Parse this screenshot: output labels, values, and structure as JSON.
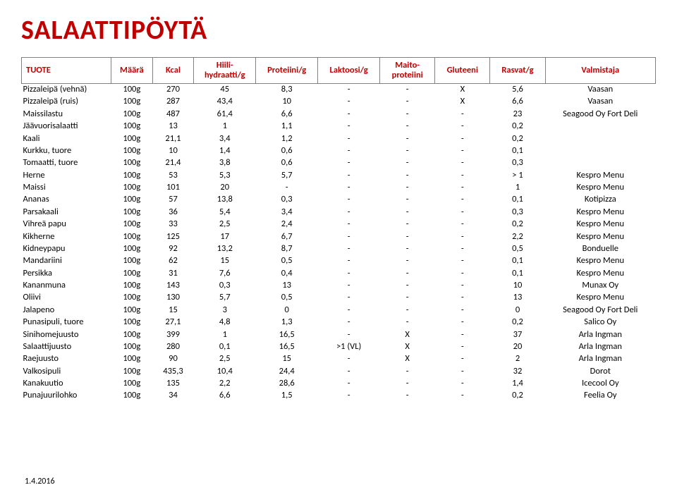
{
  "title": "SALAATTIPÖYTÄ",
  "footer_date": "1.4.2016",
  "table": {
    "headers": [
      "TUOTE",
      "Määrä",
      "Kcal",
      "Hiili-\nhydraatti/g",
      "Proteiini/g",
      "Laktoosi/g",
      "Maito-\nproteiini",
      "Gluteeni",
      "Rasvat/g",
      "Valmistaja"
    ],
    "rows": [
      [
        "Pizzaleipä (vehnä)",
        "100g",
        "270",
        "45",
        "8,3",
        "-",
        "-",
        "X",
        "5,6",
        "Vaasan"
      ],
      [
        "Pizzaleipä (ruis)",
        "100g",
        "287",
        "43,4",
        "10",
        "-",
        "-",
        "X",
        "6,6",
        "Vaasan"
      ],
      [
        "Maissilastu",
        "100g",
        "487",
        "61,4",
        "6,6",
        "-",
        "-",
        "-",
        "23",
        "Seagood Oy Fort Deli"
      ],
      [
        "Jäävuorisalaatti",
        "100g",
        "13",
        "1",
        "1,1",
        "-",
        "-",
        "-",
        "0,2",
        ""
      ],
      [
        "Kaali",
        "100g",
        "21,1",
        "3,4",
        "1,2",
        "-",
        "-",
        "-",
        "0,2",
        ""
      ],
      [
        "Kurkku, tuore",
        "100g",
        "10",
        "1,4",
        "0,6",
        "-",
        "-",
        "-",
        "0,1",
        ""
      ],
      [
        "Tomaatti, tuore",
        "100g",
        "21,4",
        "3,8",
        "0,6",
        "-",
        "-",
        "-",
        "0,3",
        ""
      ],
      [
        "Herne",
        "100g",
        "53",
        "5,3",
        "5,7",
        "-",
        "-",
        "-",
        "> 1",
        "Kespro Menu"
      ],
      [
        "Maissi",
        "100g",
        "101",
        "20",
        "-",
        "-",
        "-",
        "-",
        "1",
        "Kespro Menu"
      ],
      [
        "Ananas",
        "100g",
        "57",
        "13,8",
        "0,3",
        "-",
        "-",
        "-",
        "0,1",
        "Kotipizza"
      ],
      [
        "Parsakaali",
        "100g",
        "36",
        "5,4",
        "3,4",
        "-",
        "-",
        "-",
        "0,3",
        "Kespro Menu"
      ],
      [
        "Vihreä papu",
        "100g",
        "33",
        "2,5",
        "2,4",
        "-",
        "-",
        "-",
        "0,2",
        "Kespro Menu"
      ],
      [
        "Kikherne",
        "100g",
        "125",
        "17",
        "6,7",
        "-",
        "-",
        "-",
        "2,2",
        "Kespro Menu"
      ],
      [
        "Kidneypapu",
        "100g",
        "92",
        "13,2",
        "8,7",
        "-",
        "-",
        "-",
        "0,5",
        "Bonduelle"
      ],
      [
        "Mandariini",
        "100g",
        "62",
        "15",
        "0,5",
        "-",
        "-",
        "-",
        "0,1",
        "Kespro Menu"
      ],
      [
        "Persikka",
        "100g",
        "31",
        "7,6",
        "0,4",
        "-",
        "-",
        "-",
        "0,1",
        "Kespro Menu"
      ],
      [
        "Kananmuna",
        "100g",
        "143",
        "0,3",
        "13",
        "-",
        "-",
        "-",
        "10",
        "Munax Oy"
      ],
      [
        "Oliivi",
        "100g",
        "130",
        "5,7",
        "0,5",
        "-",
        "-",
        "-",
        "13",
        "Kespro Menu"
      ],
      [
        "Jalapeno",
        "100g",
        "15",
        "3",
        "0",
        "-",
        "-",
        "-",
        "0",
        "Seagood Oy Fort Deli"
      ],
      [
        "Punasipuli, tuore",
        "100g",
        "27,1",
        "4,8",
        "1,3",
        "-",
        "-",
        "-",
        "0,2",
        "Salico Oy"
      ],
      [
        "Sinihomejuusto",
        "100g",
        "399",
        "1",
        "16,5",
        "-",
        "X",
        "-",
        "37",
        "Arla Ingman"
      ],
      [
        "Salaattijuusto",
        "100g",
        "280",
        "0,1",
        "16,5",
        ">1 (VL)",
        "X",
        "-",
        "20",
        "Arla Ingman"
      ],
      [
        "Raejuusto",
        "100g",
        "90",
        "2,5",
        "15",
        "-",
        "X",
        "-",
        "2",
        "Arla Ingman"
      ],
      [
        "Valkosipuli",
        "100g",
        "435,3",
        "10,4",
        "24,4",
        "-",
        "-",
        "-",
        "32",
        "Dorot"
      ],
      [
        "Kanakuutio",
        "100g",
        "135",
        "2,2",
        "28,6",
        "-",
        "-",
        "-",
        "1,4",
        "Icecool Oy"
      ],
      [
        "Punajuurilohko",
        "100g",
        "34",
        "6,6",
        "1,5",
        "-",
        "-",
        "-",
        "0,2",
        "Feelia Oy"
      ]
    ]
  },
  "style": {
    "title_color": "#c00000",
    "header_text_color": "#c00000",
    "header_border_color": "#808080",
    "cell_text_color": "#000000",
    "background": "#ffffff",
    "title_fontsize": 38,
    "cell_fontsize": 12.5
  }
}
